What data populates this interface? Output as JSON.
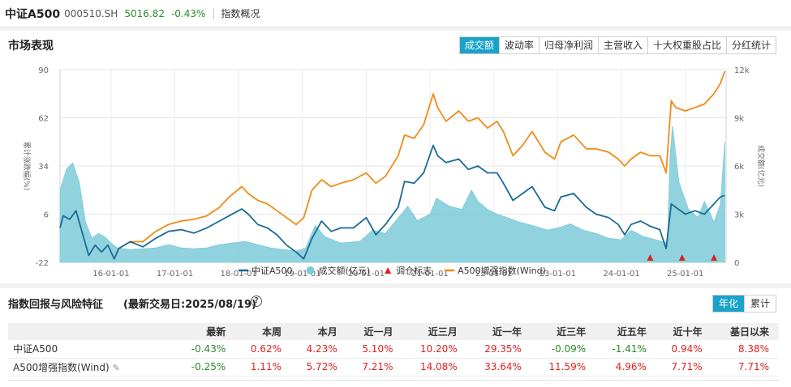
{
  "header": {
    "name": "中证A500",
    "code": "000510.SH",
    "price": "5016.82",
    "change": "-0.43%",
    "overview": "指数概况"
  },
  "market": {
    "title": "市场表现",
    "tabs": [
      "成交额",
      "波动率",
      "归母净利润",
      "主营收入",
      "十大权重股占比",
      "分红统计"
    ],
    "active_tab": 0
  },
  "chart_data": {
    "type": "line",
    "x_ticks": [
      "16-01-01",
      "17-01-01",
      "18-01-01",
      "19-01-01",
      "20-01-01",
      "21-01-01",
      "22-01-01",
      "23-01-01",
      "24-01-01",
      "25-01-01"
    ],
    "x_range": [
      2015.2,
      2025.64
    ],
    "ylabel_left": "累计涨跌幅(%)",
    "ylabel_right": "成交额(亿元)",
    "yleft_ticks": [
      "90",
      "62",
      "34",
      "6",
      "-22"
    ],
    "yleft_lim": [
      -22,
      90
    ],
    "yright_ticks": [
      "12k",
      "9k",
      "6k",
      "3k",
      "0"
    ],
    "yright_lim": [
      0,
      12000
    ],
    "grid": true,
    "legend_position": "bottom",
    "colors": {
      "csi": "#1b6b96",
      "volume": "#7ccbd8",
      "enhanced": "#ef8c16",
      "marker": "#e02020"
    },
    "series": [
      {
        "name": "中证A500",
        "type": "line",
        "points": [
          [
            2015.2,
            -2
          ],
          [
            2015.25,
            5
          ],
          [
            2015.35,
            3
          ],
          [
            2015.45,
            8
          ],
          [
            2015.55,
            -5
          ],
          [
            2015.65,
            -18
          ],
          [
            2015.75,
            -12
          ],
          [
            2015.85,
            -16
          ],
          [
            2015.95,
            -12
          ],
          [
            2016.05,
            -20
          ],
          [
            2016.12,
            -14
          ],
          [
            2016.3,
            -10
          ],
          [
            2016.5,
            -13
          ],
          [
            2016.7,
            -8
          ],
          [
            2016.9,
            -4
          ],
          [
            2017.1,
            -3
          ],
          [
            2017.3,
            -5
          ],
          [
            2017.5,
            -2
          ],
          [
            2017.7,
            2
          ],
          [
            2017.85,
            5
          ],
          [
            2018.05,
            9
          ],
          [
            2018.15,
            6
          ],
          [
            2018.3,
            0
          ],
          [
            2018.45,
            -2
          ],
          [
            2018.6,
            -6
          ],
          [
            2018.75,
            -12
          ],
          [
            2018.9,
            -16
          ],
          [
            2019.02,
            -20
          ],
          [
            2019.15,
            -8
          ],
          [
            2019.3,
            2
          ],
          [
            2019.45,
            -4
          ],
          [
            2019.6,
            -2
          ],
          [
            2019.8,
            -2
          ],
          [
            2020.0,
            4
          ],
          [
            2020.15,
            -6
          ],
          [
            2020.3,
            0
          ],
          [
            2020.5,
            10
          ],
          [
            2020.6,
            25
          ],
          [
            2020.75,
            24
          ],
          [
            2020.9,
            30
          ],
          [
            2021.05,
            46
          ],
          [
            2021.12,
            40
          ],
          [
            2021.25,
            36
          ],
          [
            2021.45,
            38
          ],
          [
            2021.6,
            32
          ],
          [
            2021.75,
            34
          ],
          [
            2021.9,
            30
          ],
          [
            2022.05,
            30
          ],
          [
            2022.15,
            24
          ],
          [
            2022.3,
            14
          ],
          [
            2022.45,
            18
          ],
          [
            2022.6,
            22
          ],
          [
            2022.8,
            10
          ],
          [
            2022.95,
            8
          ],
          [
            2023.05,
            16
          ],
          [
            2023.25,
            18
          ],
          [
            2023.45,
            10
          ],
          [
            2023.6,
            6
          ],
          [
            2023.8,
            4
          ],
          [
            2023.95,
            0
          ],
          [
            2024.05,
            -6
          ],
          [
            2024.15,
            0
          ],
          [
            2024.3,
            2
          ],
          [
            2024.45,
            -1
          ],
          [
            2024.6,
            -3
          ],
          [
            2024.7,
            -14
          ],
          [
            2024.78,
            12
          ],
          [
            2024.85,
            10
          ],
          [
            2025.0,
            6
          ],
          [
            2025.15,
            8
          ],
          [
            2025.3,
            6
          ],
          [
            2025.45,
            12
          ],
          [
            2025.55,
            16
          ],
          [
            2025.62,
            16.9
          ]
        ]
      },
      {
        "name": "成交额(亿元)",
        "type": "area",
        "points": [
          [
            2015.2,
            4500
          ],
          [
            2015.3,
            5800
          ],
          [
            2015.4,
            6200
          ],
          [
            2015.5,
            5000
          ],
          [
            2015.6,
            2500
          ],
          [
            2015.7,
            1500
          ],
          [
            2015.8,
            1800
          ],
          [
            2015.9,
            1600
          ],
          [
            2016.0,
            1200
          ],
          [
            2016.1,
            900
          ],
          [
            2016.3,
            800
          ],
          [
            2016.5,
            850
          ],
          [
            2016.7,
            900
          ],
          [
            2016.9,
            1100
          ],
          [
            2017.1,
            900
          ],
          [
            2017.3,
            850
          ],
          [
            2017.5,
            900
          ],
          [
            2017.7,
            1100
          ],
          [
            2017.9,
            1200
          ],
          [
            2018.1,
            1300
          ],
          [
            2018.3,
            1100
          ],
          [
            2018.5,
            900
          ],
          [
            2018.7,
            800
          ],
          [
            2018.9,
            700
          ],
          [
            2019.05,
            900
          ],
          [
            2019.2,
            2300
          ],
          [
            2019.35,
            1600
          ],
          [
            2019.6,
            1200
          ],
          [
            2019.9,
            1300
          ],
          [
            2020.1,
            2000
          ],
          [
            2020.3,
            1800
          ],
          [
            2020.55,
            3000
          ],
          [
            2020.65,
            3500
          ],
          [
            2020.8,
            2600
          ],
          [
            2021.0,
            3000
          ],
          [
            2021.1,
            4000
          ],
          [
            2021.3,
            3500
          ],
          [
            2021.5,
            3300
          ],
          [
            2021.65,
            4500
          ],
          [
            2021.75,
            3800
          ],
          [
            2021.9,
            3300
          ],
          [
            2022.05,
            3000
          ],
          [
            2022.2,
            2800
          ],
          [
            2022.4,
            2500
          ],
          [
            2022.6,
            2300
          ],
          [
            2022.85,
            2000
          ],
          [
            2023.05,
            2200
          ],
          [
            2023.2,
            2400
          ],
          [
            2023.4,
            2000
          ],
          [
            2023.6,
            1800
          ],
          [
            2023.8,
            1500
          ],
          [
            2024.0,
            1400
          ],
          [
            2024.15,
            2000
          ],
          [
            2024.35,
            1600
          ],
          [
            2024.55,
            1400
          ],
          [
            2024.72,
            1200
          ],
          [
            2024.76,
            6500
          ],
          [
            2024.8,
            8500
          ],
          [
            2024.9,
            5000
          ],
          [
            2025.05,
            3300
          ],
          [
            2025.2,
            2800
          ],
          [
            2025.3,
            3800
          ],
          [
            2025.45,
            2500
          ],
          [
            2025.55,
            3600
          ],
          [
            2025.62,
            7500
          ]
        ]
      },
      {
        "name": "A500增强指数(Wind)",
        "type": "line",
        "points": [
          [
            2016.05,
            -20
          ],
          [
            2016.12,
            -14
          ],
          [
            2016.3,
            -10
          ],
          [
            2016.5,
            -10
          ],
          [
            2016.7,
            -4
          ],
          [
            2016.9,
            0
          ],
          [
            2017.1,
            2
          ],
          [
            2017.3,
            3
          ],
          [
            2017.5,
            5
          ],
          [
            2017.7,
            10
          ],
          [
            2017.85,
            16
          ],
          [
            2018.05,
            22
          ],
          [
            2018.15,
            18
          ],
          [
            2018.3,
            14
          ],
          [
            2018.45,
            12
          ],
          [
            2018.6,
            8
          ],
          [
            2018.75,
            4
          ],
          [
            2018.9,
            0
          ],
          [
            2019.02,
            4
          ],
          [
            2019.15,
            20
          ],
          [
            2019.3,
            26
          ],
          [
            2019.45,
            22
          ],
          [
            2019.6,
            24
          ],
          [
            2019.8,
            26
          ],
          [
            2020.0,
            30
          ],
          [
            2020.15,
            24
          ],
          [
            2020.3,
            28
          ],
          [
            2020.5,
            40
          ],
          [
            2020.6,
            52
          ],
          [
            2020.75,
            50
          ],
          [
            2020.9,
            58
          ],
          [
            2021.05,
            76
          ],
          [
            2021.12,
            68
          ],
          [
            2021.25,
            60
          ],
          [
            2021.45,
            66
          ],
          [
            2021.6,
            60
          ],
          [
            2021.75,
            62
          ],
          [
            2021.9,
            56
          ],
          [
            2022.05,
            60
          ],
          [
            2022.15,
            54
          ],
          [
            2022.3,
            40
          ],
          [
            2022.45,
            46
          ],
          [
            2022.6,
            54
          ],
          [
            2022.8,
            42
          ],
          [
            2022.95,
            38
          ],
          [
            2023.05,
            48
          ],
          [
            2023.25,
            52
          ],
          [
            2023.45,
            44
          ],
          [
            2023.6,
            44
          ],
          [
            2023.8,
            42
          ],
          [
            2023.95,
            38
          ],
          [
            2024.05,
            34
          ],
          [
            2024.15,
            38
          ],
          [
            2024.3,
            42
          ],
          [
            2024.45,
            40
          ],
          [
            2024.6,
            40
          ],
          [
            2024.7,
            30
          ],
          [
            2024.78,
            72
          ],
          [
            2024.85,
            68
          ],
          [
            2025.0,
            66
          ],
          [
            2025.15,
            68
          ],
          [
            2025.3,
            70
          ],
          [
            2025.45,
            76
          ],
          [
            2025.55,
            82
          ],
          [
            2025.62,
            89
          ]
        ]
      }
    ],
    "markers": {
      "name": "调仓标志",
      "x": [
        2024.45,
        2024.95,
        2025.45
      ]
    }
  },
  "legend": [
    {
      "label": "中证A500",
      "kind": "line",
      "color": "#1b6b96"
    },
    {
      "label": "成交额(亿元)",
      "kind": "dot",
      "color": "#7ccbd8"
    },
    {
      "label": "调仓标志",
      "kind": "triangle",
      "color": "#e02020"
    },
    {
      "label": "A500增强指数(Wind)",
      "kind": "line",
      "color": "#ef8c16"
    }
  ],
  "returns": {
    "title": "指数回报与风险特征",
    "date_label": "(最新交易日:2025/08/19)",
    "help_icon": "question-circle-icon",
    "toggle": [
      "年化",
      "累计"
    ],
    "columns": [
      "",
      "最新",
      "本周",
      "本月",
      "近一月",
      "近三月",
      "近一年",
      "近三年",
      "近五年",
      "近十年",
      "基日以来"
    ],
    "rows": [
      {
        "name": "中证A500",
        "values": [
          "-0.43%",
          "0.62%",
          "4.23%",
          "5.10%",
          "10.20%",
          "29.35%",
          "-0.09%",
          "-1.41%",
          "0.94%",
          "8.38%"
        ]
      },
      {
        "name": "A500增强指数(Wind)",
        "values": [
          "-0.25%",
          "1.11%",
          "5.72%",
          "7.21%",
          "14.08%",
          "33.64%",
          "11.59%",
          "4.96%",
          "7.71%",
          "7.71%"
        ]
      }
    ]
  }
}
